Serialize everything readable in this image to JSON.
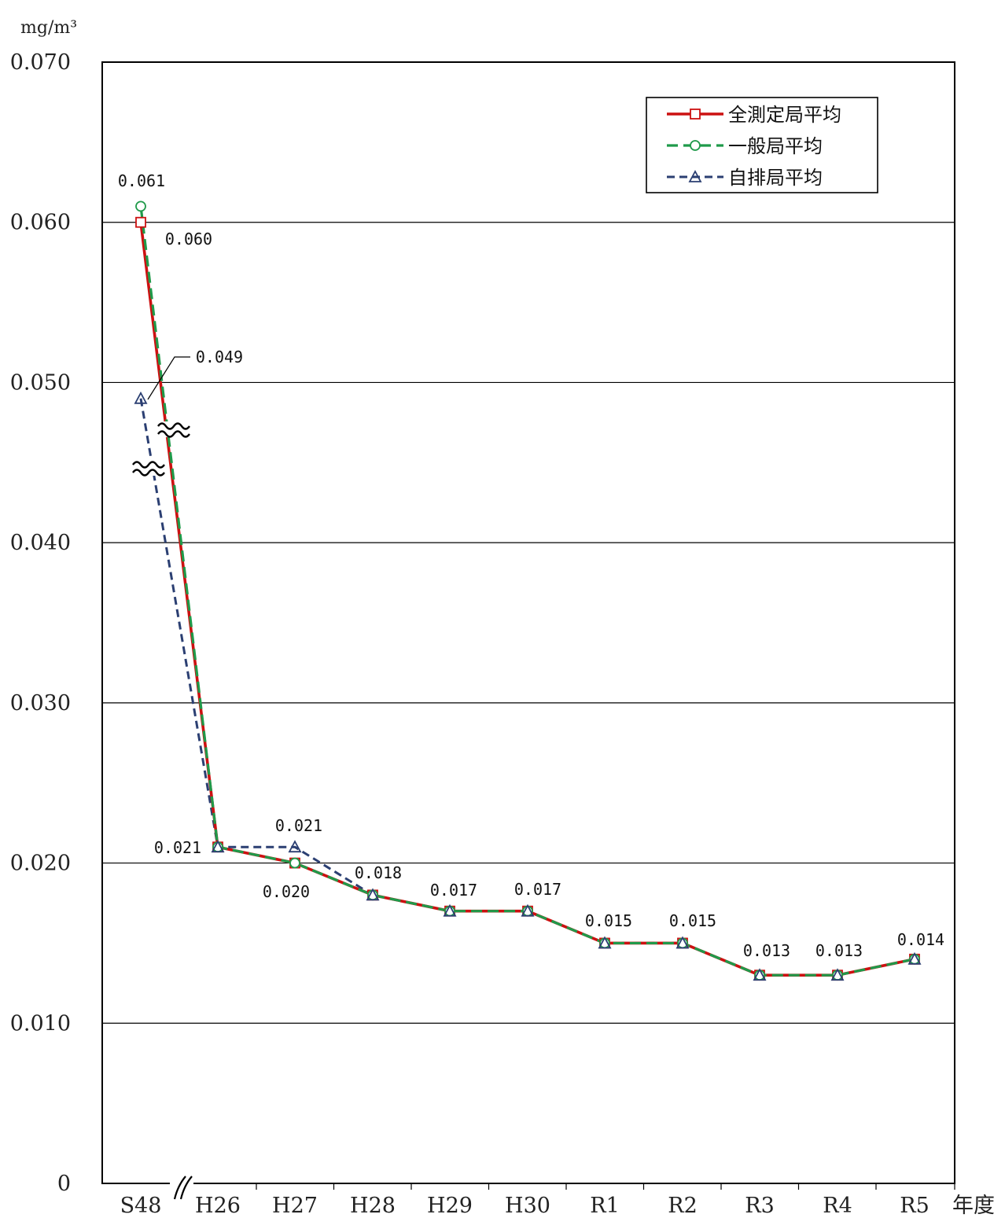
{
  "chart_data": {
    "type": "line",
    "unit_label": "mg/m³",
    "xlabel": "年度",
    "ylabel": "",
    "ylim": [
      0,
      0.07
    ],
    "yticks": [
      0,
      0.01,
      0.02,
      0.03,
      0.04,
      0.05,
      0.06,
      0.07
    ],
    "ytick_labels": [
      "0",
      "0.010",
      "0.020",
      "0.030",
      "0.040",
      "0.050",
      "0.060",
      "0.070"
    ],
    "categories": [
      "S48",
      "H26",
      "H27",
      "H28",
      "H29",
      "H30",
      "R1",
      "R2",
      "R3",
      "R4",
      "R5"
    ],
    "axis_break_after": "S48",
    "grid": true,
    "legend_position": "top-right",
    "series": [
      {
        "name": "全測定局平均",
        "color": "#cc1111",
        "dash": "solid",
        "marker": "square",
        "values": [
          0.06,
          0.021,
          0.02,
          0.018,
          0.017,
          0.017,
          0.015,
          0.015,
          0.013,
          0.013,
          0.014
        ]
      },
      {
        "name": "一般局平均",
        "color": "#1f9a4a",
        "dash": "dashed",
        "marker": "circle",
        "values": [
          0.061,
          0.021,
          0.02,
          0.018,
          0.017,
          0.017,
          0.015,
          0.015,
          0.013,
          0.013,
          0.014
        ]
      },
      {
        "name": "自排局平均",
        "color": "#2b3f72",
        "dash": "dotted",
        "marker": "triangle",
        "values": [
          0.049,
          0.021,
          0.021,
          0.018,
          0.017,
          0.017,
          0.015,
          0.015,
          0.013,
          0.013,
          0.014
        ]
      }
    ],
    "data_labels": [
      {
        "text": "0.061",
        "category": "S48",
        "value": 0.061,
        "series": "一般局平均"
      },
      {
        "text": "0.060",
        "category": "S48",
        "value": 0.06,
        "series": "全測定局平均"
      },
      {
        "text": "0.049",
        "category": "S48",
        "value": 0.049,
        "series": "自排局平均"
      },
      {
        "text": "0.021",
        "category": "H26",
        "value": 0.021,
        "series": "全測定局平均"
      },
      {
        "text": "0.021",
        "category": "H27",
        "value": 0.021,
        "series": "自排局平均"
      },
      {
        "text": "0.020",
        "category": "H27",
        "value": 0.02,
        "series": "全測定局平均"
      },
      {
        "text": "0.018",
        "category": "H28",
        "value": 0.018,
        "series": "全測定局平均"
      },
      {
        "text": "0.017",
        "category": "H29",
        "value": 0.017,
        "series": "全測定局平均"
      },
      {
        "text": "0.017",
        "category": "H30",
        "value": 0.017,
        "series": "全測定局平均"
      },
      {
        "text": "0.015",
        "category": "R1",
        "value": 0.015,
        "series": "全測定局平均"
      },
      {
        "text": "0.015",
        "category": "R2",
        "value": 0.015,
        "series": "全測定局平均"
      },
      {
        "text": "0.013",
        "category": "R3",
        "value": 0.013,
        "series": "全測定局平均"
      },
      {
        "text": "0.013",
        "category": "R4",
        "value": 0.013,
        "series": "全測定局平均"
      },
      {
        "text": "0.014",
        "category": "R5",
        "value": 0.014,
        "series": "全測定局平均"
      }
    ]
  }
}
